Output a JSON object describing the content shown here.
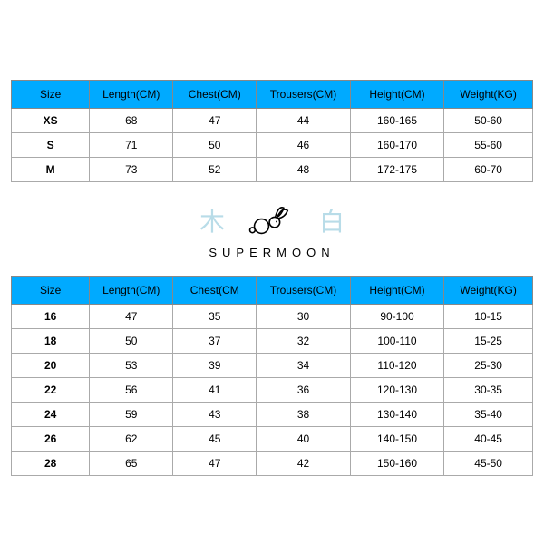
{
  "colors": {
    "header_bg": "#00aaff",
    "header_text": "#000000",
    "border": "#888888",
    "cell_border": "#aaaaaa",
    "cell_bg": "#ffffff",
    "cell_text": "#000000",
    "cjk_color": "#b8dce8",
    "brand_color": "#000000"
  },
  "table1": {
    "columns": [
      "Size",
      "Length(CM)",
      "Chest(CM)",
      "Trousers(CM)",
      "Height(CM)",
      "Weight(KG)"
    ],
    "rows": [
      [
        "XS",
        "68",
        "47",
        "44",
        "160-165",
        "50-60"
      ],
      [
        "S",
        "71",
        "50",
        "46",
        "160-170",
        "55-60"
      ],
      [
        "M",
        "73",
        "52",
        "48",
        "172-175",
        "60-70"
      ]
    ]
  },
  "logo": {
    "left_char": "木",
    "right_char": "白",
    "brand": "SUPERMOON"
  },
  "table2": {
    "columns": [
      "Size",
      "Length(CM)",
      "Chest(CM",
      "Trousers(CM)",
      "Height(CM)",
      "Weight(KG)"
    ],
    "rows": [
      [
        "16",
        "47",
        "35",
        "30",
        "90-100",
        "10-15"
      ],
      [
        "18",
        "50",
        "37",
        "32",
        "100-110",
        "15-25"
      ],
      [
        "20",
        "53",
        "39",
        "34",
        "110-120",
        "25-30"
      ],
      [
        "22",
        "56",
        "41",
        "36",
        "120-130",
        "30-35"
      ],
      [
        "24",
        "59",
        "43",
        "38",
        "130-140",
        "35-40"
      ],
      [
        "26",
        "62",
        "45",
        "40",
        "140-150",
        "40-45"
      ],
      [
        "28",
        "65",
        "47",
        "42",
        "150-160",
        "45-50"
      ]
    ]
  }
}
